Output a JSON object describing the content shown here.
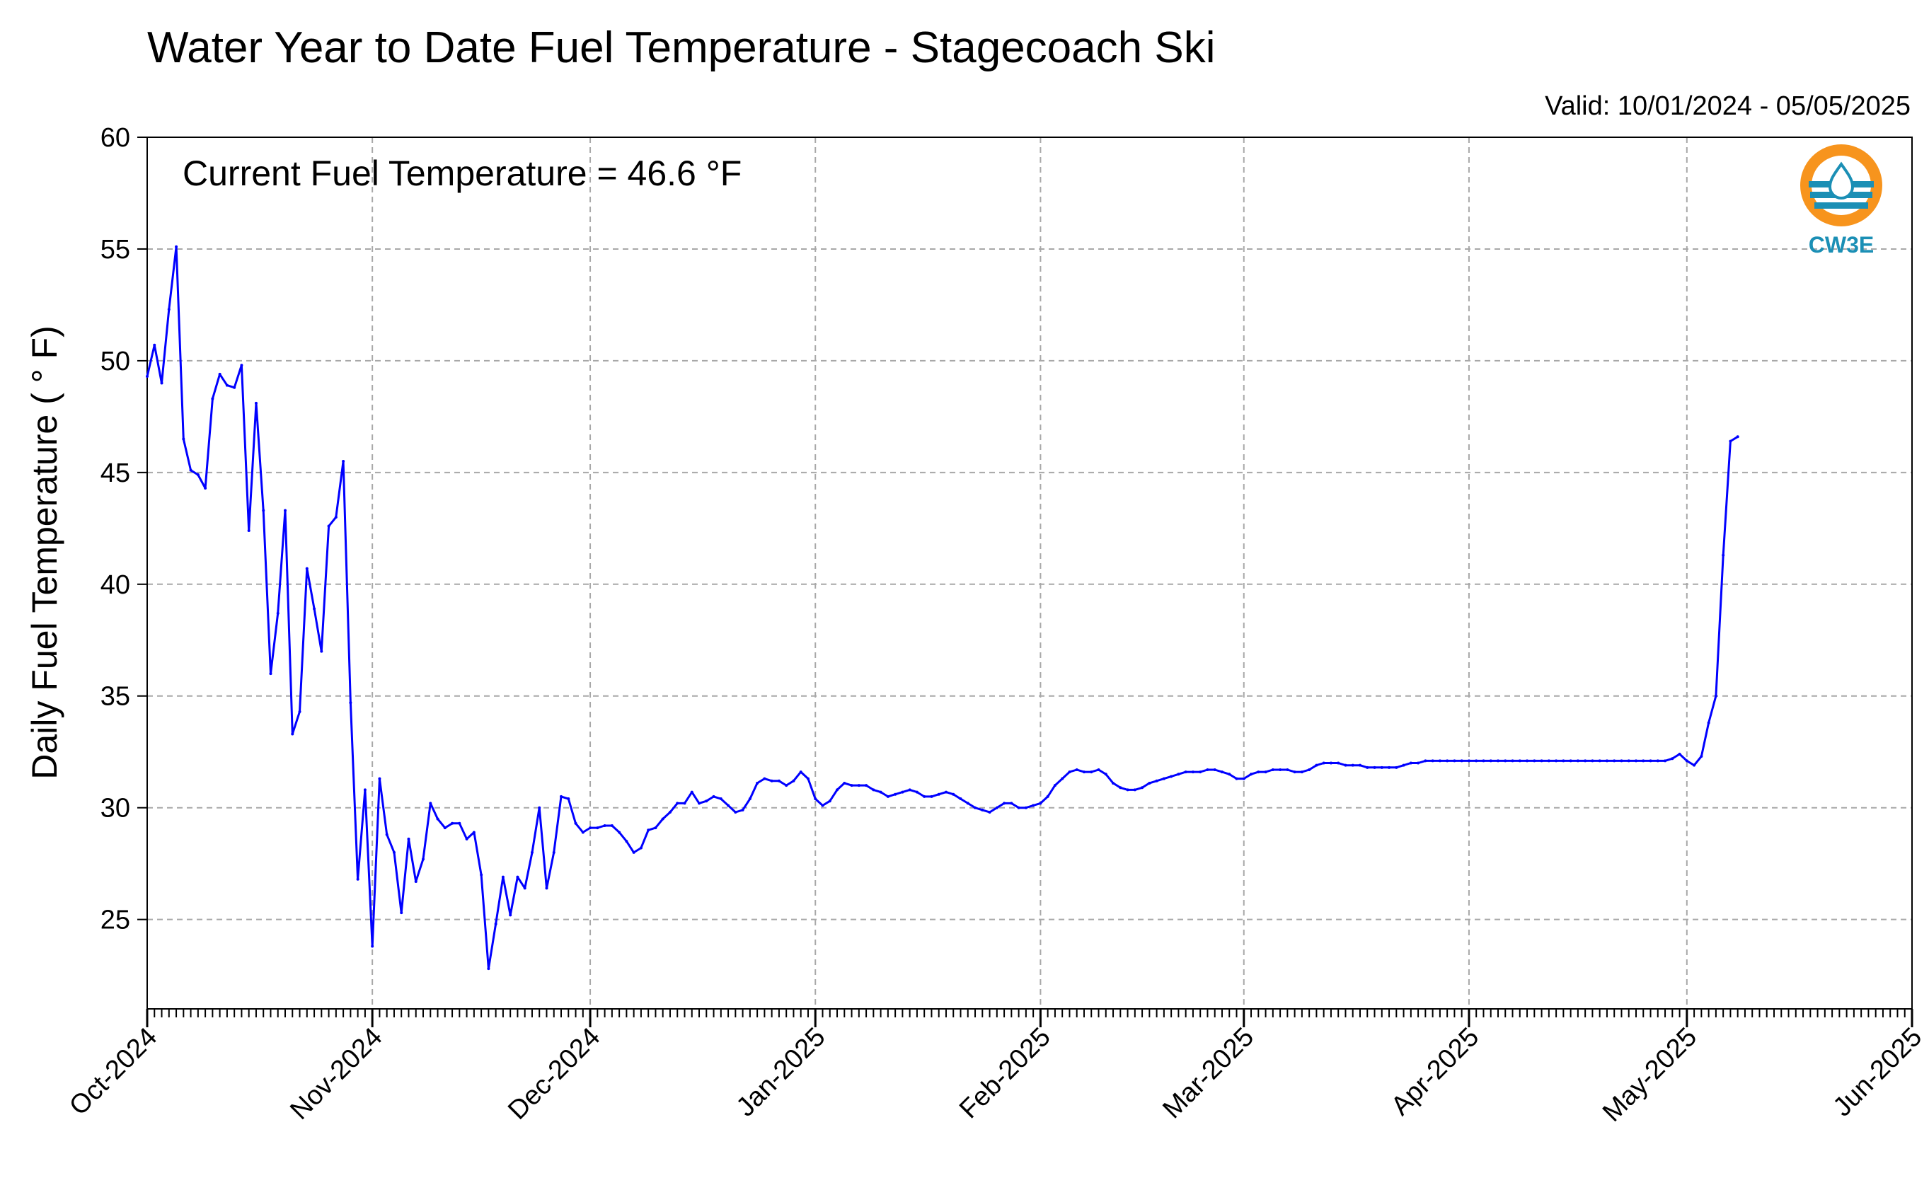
{
  "chart_data": {
    "type": "line",
    "title": "Water Year to Date Fuel Temperature - Stagecoach Ski",
    "subtitle": "Valid: 10/01/2024 - 05/05/2025",
    "ylabel": "Daily Fuel Temperature ( ° F)",
    "xlabel": "",
    "annotation": "Current Fuel Temperature = 46.6  °F",
    "ylim": [
      21,
      60
    ],
    "yticks": [
      25,
      30,
      35,
      40,
      45,
      50,
      55,
      60
    ],
    "xlim": [
      "2024-10-01",
      "2025-06-01"
    ],
    "xticks": [
      {
        "date": "2024-10-01",
        "label": "Oct-2024"
      },
      {
        "date": "2024-11-01",
        "label": "Nov-2024"
      },
      {
        "date": "2024-12-01",
        "label": "Dec-2024"
      },
      {
        "date": "2025-01-01",
        "label": "Jan-2025"
      },
      {
        "date": "2025-02-01",
        "label": "Feb-2025"
      },
      {
        "date": "2025-03-01",
        "label": "Mar-2025"
      },
      {
        "date": "2025-04-01",
        "label": "Apr-2025"
      },
      {
        "date": "2025-05-01",
        "label": "May-2025"
      },
      {
        "date": "2025-06-01",
        "label": "Jun-2025"
      }
    ],
    "grid": true,
    "line_color": "#0000ff",
    "series": [
      {
        "start_date": "2024-10-01",
        "values": [
          49.3,
          50.7,
          49.0,
          52.3,
          55.1,
          46.5,
          45.1,
          44.9,
          44.3,
          48.3,
          49.4,
          48.9,
          48.8,
          49.8,
          42.4,
          48.1,
          43.3,
          36.0,
          38.7,
          43.3,
          33.3,
          34.3,
          40.7,
          38.9,
          37.0,
          42.6,
          43.0,
          45.5,
          34.7,
          26.8,
          30.8,
          23.8,
          31.3,
          28.8,
          28.0,
          25.3,
          28.6,
          26.7,
          27.7,
          30.2,
          29.5,
          29.1,
          29.3,
          29.3,
          28.6,
          28.9,
          27.0,
          22.8,
          24.8,
          26.9,
          25.2,
          26.9,
          26.4,
          28.0,
          30.0,
          26.4,
          28.0,
          30.5,
          30.4,
          29.3,
          28.9,
          29.1,
          29.1,
          29.2,
          29.2,
          28.9,
          28.5,
          28.0,
          28.2,
          29.0,
          29.1,
          29.5,
          29.8,
          30.2,
          30.2,
          30.7,
          30.2,
          30.3,
          30.5,
          30.4,
          30.1,
          29.8,
          29.9,
          30.4,
          31.1,
          31.3,
          31.2,
          31.2,
          31.0,
          31.2,
          31.6,
          31.3,
          30.4,
          30.1,
          30.3,
          30.8,
          31.1,
          31.0,
          31.0,
          31.0,
          30.8,
          30.7,
          30.5,
          30.6,
          30.7,
          30.8,
          30.7,
          30.5,
          30.5,
          30.6,
          30.7,
          30.6,
          30.4,
          30.2,
          30.0,
          29.9,
          29.8,
          30.0,
          30.2,
          30.2,
          30.0,
          30.0,
          30.1,
          30.2,
          30.5,
          31.0,
          31.3,
          31.6,
          31.7,
          31.6,
          31.6,
          31.7,
          31.5,
          31.1,
          30.9,
          30.8,
          30.8,
          30.9,
          31.1,
          31.2,
          31.3,
          31.4,
          31.5,
          31.6,
          31.6,
          31.6,
          31.7,
          31.7,
          31.6,
          31.5,
          31.3,
          31.3,
          31.5,
          31.6,
          31.6,
          31.7,
          31.7,
          31.7,
          31.6,
          31.6,
          31.7,
          31.9,
          32.0,
          32.0,
          32.0,
          31.9,
          31.9,
          31.9,
          31.8,
          31.8,
          31.8,
          31.8,
          31.8,
          31.9,
          32.0,
          32.0,
          32.1,
          32.1,
          32.1,
          32.1,
          32.1,
          32.1,
          32.1,
          32.1,
          32.1,
          32.1,
          32.1,
          32.1,
          32.1,
          32.1,
          32.1,
          32.1,
          32.1,
          32.1,
          32.1,
          32.1,
          32.1,
          32.1,
          32.1,
          32.1,
          32.1,
          32.1,
          32.1,
          32.1,
          32.1,
          32.1,
          32.1,
          32.1,
          32.1,
          32.1,
          32.2,
          32.4,
          32.1,
          31.9,
          32.3,
          33.8,
          35.0,
          41.3,
          46.4,
          46.6
        ]
      }
    ]
  },
  "logo": {
    "text": "CW3E",
    "ring_color": "#f7941d",
    "wave_color": "#1b8fb5",
    "text_color": "#1b8fb5"
  }
}
